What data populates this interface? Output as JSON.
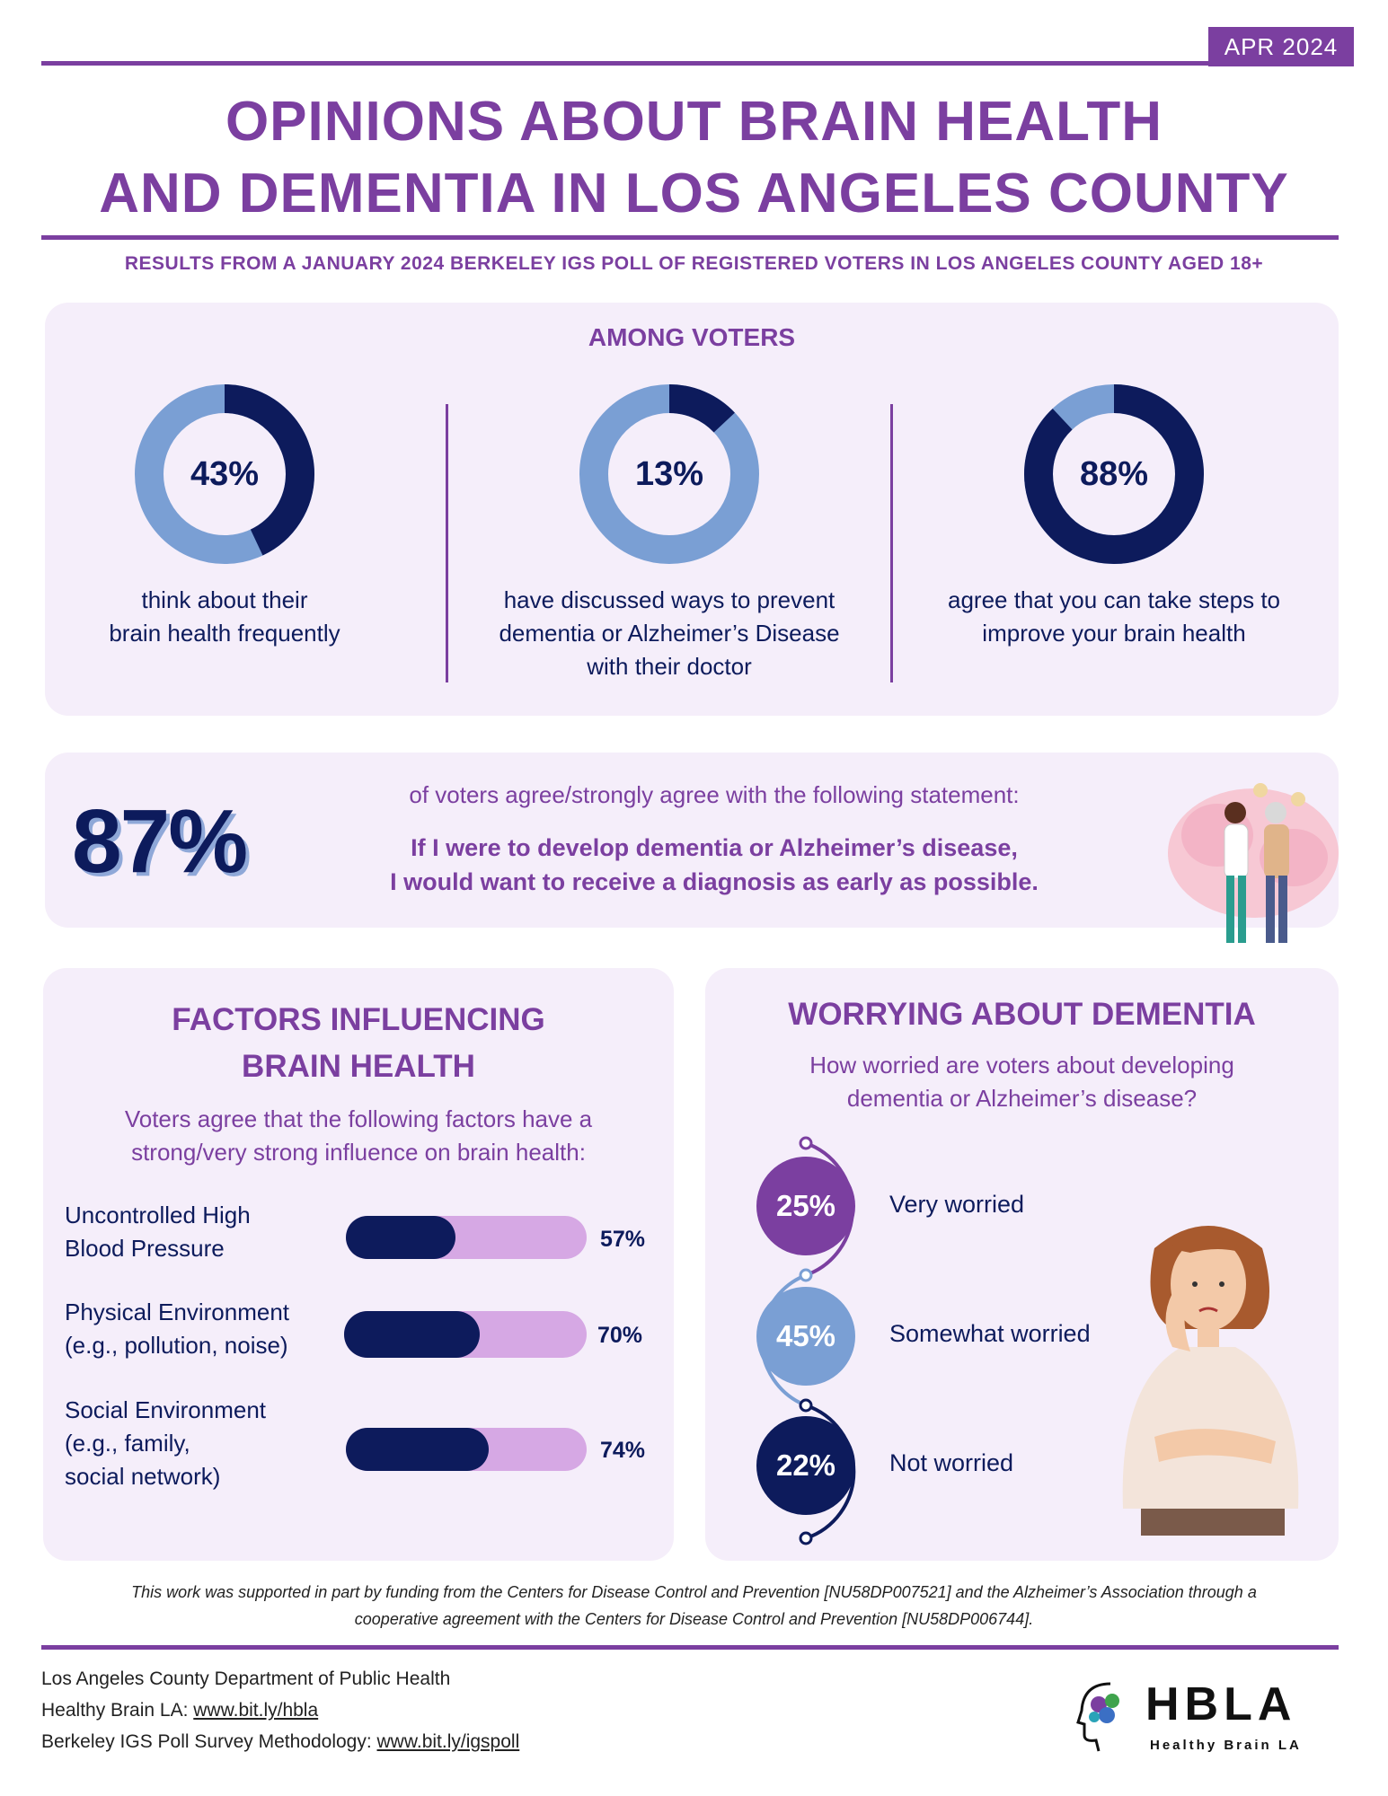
{
  "header": {
    "date_badge": "APR 2024",
    "title_line1": "OPINIONS ABOUT BRAIN HEALTH",
    "title_line2": "AND DEMENTIA IN LOS ANGELES COUNTY",
    "subtitle": "RESULTS FROM A JANUARY 2024 BERKELEY IGS POLL OF REGISTERED VOTERS IN LOS ANGELES COUNTY AGED 18+"
  },
  "among_voters": {
    "heading": "AMONG VOTERS",
    "stats": [
      {
        "value": 43,
        "label": "43%",
        "caption_line1": "think about their",
        "caption_line2": "brain health frequently",
        "caption_line3": ""
      },
      {
        "value": 13,
        "label": "13%",
        "caption_line1": "have discussed ways to prevent",
        "caption_line2": "dementia or Alzheimer’s Disease",
        "caption_line3": "with their doctor"
      },
      {
        "value": 88,
        "label": "88%",
        "caption_line1": "agree that you can take steps to",
        "caption_line2": "improve your brain health",
        "caption_line3": ""
      }
    ]
  },
  "diagnosis": {
    "percent": "87%",
    "intro": "of voters agree/strongly agree with the following statement:",
    "statement_line1": "If I were to develop dementia or Alzheimer’s disease,",
    "statement_line2": "I would want to receive a diagnosis as early as possible."
  },
  "factors": {
    "heading_line1": "FACTORS INFLUENCING",
    "heading_line2": "BRAIN HEALTH",
    "intro_line1": "Voters agree that the following factors have a",
    "intro_line2": "strong/very strong influence on brain health:",
    "items": [
      {
        "label_line1": "Uncontrolled High",
        "label_line2": "Blood Pressure",
        "label_line3": "",
        "value": 57,
        "value_label": "57%"
      },
      {
        "label_line1": "Physical Environment",
        "label_line2": "(e.g., pollution, noise)",
        "label_line3": "",
        "value": 70,
        "value_label": "70%"
      },
      {
        "label_line1": "Social Environment",
        "label_line2": "(e.g., family,",
        "label_line3": "social network)",
        "value": 74,
        "value_label": "74%"
      }
    ]
  },
  "worry": {
    "heading": "WORRYING ABOUT DEMENTIA",
    "question_line1": "How worried are voters about developing",
    "question_line2": "dementia or Alzheimer’s disease?",
    "items": [
      {
        "value": 25,
        "value_label": "25%",
        "label": "Very worried",
        "color": "#7b3fa0"
      },
      {
        "value": 45,
        "value_label": "45%",
        "label": "Somewhat worried",
        "color": "#7a9fd4"
      },
      {
        "value": 22,
        "value_label": "22%",
        "label": "Not worried",
        "color": "#0d1b5c"
      }
    ]
  },
  "footnote": {
    "line1": "This work was supported in part by funding from the Centers for Disease Control and Prevention [NU58DP007521] and the Alzheimer’s Association through a",
    "line2": "cooperative agreement with the Centers for Disease Control and Prevention [NU58DP006744]."
  },
  "footer": {
    "org": "Los Angeles County Department of Public Health",
    "hbla_prefix": "Healthy Brain LA: ",
    "hbla_link": "www.bit.ly/hbla",
    "igs_prefix": "Berkeley IGS Poll Survey Methodology: ",
    "igs_link": "www.bit.ly/igspoll",
    "logo_text": "HBLA",
    "logo_sub": "Healthy Brain LA"
  },
  "colors": {
    "purple": "#7b3fa0",
    "navy": "#0d1b5c",
    "light_blue": "#7a9fd4",
    "lavender": "#d6a8e4",
    "panel_bg": "#f5eefa"
  }
}
